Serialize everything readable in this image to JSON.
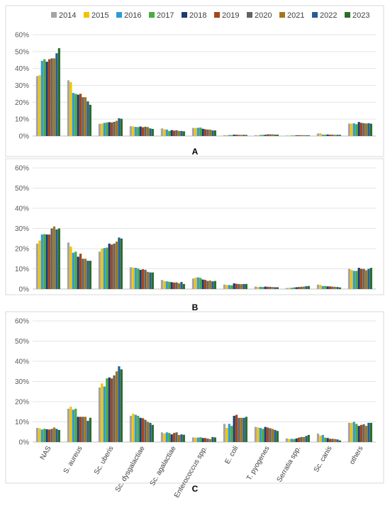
{
  "colors": [
    "#a5a5a5",
    "#f2c200",
    "#2e9bd6",
    "#4aab3f",
    "#1f3a6e",
    "#a6461c",
    "#636363",
    "#a0781a",
    "#255e91",
    "#2a6e2c"
  ],
  "chart_data": [
    {
      "type": "bar",
      "panel_label": "A",
      "categories": [
        "NAS",
        "S. aureus",
        "Sc. uberis",
        "Sc. dysgalactiae",
        "Sc. agalactiae",
        "Enterococcus spp.",
        "E. coli",
        "T. pyogenes",
        "Serratia spp.",
        "Sc. canis",
        "others"
      ],
      "show_category_labels": false,
      "ylim": [
        0,
        60
      ],
      "yticks": [
        "0%",
        "10%",
        "20%",
        "30%",
        "40%",
        "50%",
        "60%"
      ],
      "grid": true,
      "legend_position": "top",
      "series": [
        {
          "name": "2014",
          "values": [
            35.5,
            33.0,
            7.2,
            5.8,
            4.5,
            4.8,
            0.5,
            0.5,
            0.3,
            1.5,
            7.4
          ]
        },
        {
          "name": "2015",
          "values": [
            36.0,
            32.0,
            7.4,
            5.7,
            4.0,
            4.7,
            0.5,
            0.5,
            0.3,
            1.6,
            7.3
          ]
        },
        {
          "name": "2016",
          "values": [
            44.5,
            25.5,
            7.8,
            5.4,
            3.8,
            4.9,
            0.6,
            0.6,
            0.3,
            0.8,
            7.5
          ]
        },
        {
          "name": "2017",
          "values": [
            45.5,
            25.0,
            8.0,
            5.3,
            3.0,
            5.0,
            0.6,
            0.7,
            0.3,
            0.8,
            7.0
          ]
        },
        {
          "name": "2018",
          "values": [
            44.0,
            24.5,
            8.2,
            5.6,
            3.5,
            4.3,
            0.8,
            0.7,
            0.4,
            0.9,
            8.3
          ]
        },
        {
          "name": "2019",
          "values": [
            45.5,
            25.0,
            8.0,
            5.2,
            3.2,
            4.0,
            0.8,
            1.0,
            0.5,
            0.8,
            7.8
          ]
        },
        {
          "name": "2020",
          "values": [
            46.0,
            23.0,
            8.4,
            5.5,
            3.4,
            3.8,
            0.7,
            1.0,
            0.5,
            0.8,
            7.6
          ]
        },
        {
          "name": "2021",
          "values": [
            46.0,
            23.0,
            9.0,
            5.3,
            3.0,
            3.8,
            0.7,
            1.0,
            0.5,
            0.7,
            7.4
          ]
        },
        {
          "name": "2022",
          "values": [
            49.0,
            20.5,
            10.5,
            4.5,
            3.0,
            3.3,
            0.7,
            0.8,
            0.4,
            0.7,
            7.6
          ]
        },
        {
          "name": "2023",
          "values": [
            52.0,
            18.5,
            10.2,
            4.2,
            2.8,
            3.3,
            0.6,
            0.8,
            0.4,
            0.7,
            7.3
          ]
        }
      ]
    },
    {
      "type": "bar",
      "panel_label": "B",
      "categories": [
        "NAS",
        "S. aureus",
        "Sc. uberis",
        "Sc. dysgalactiae",
        "Sc. agalactiae",
        "Enterococcus spp.",
        "E. coli",
        "T. pyogenes",
        "Serratia spp.",
        "Sc. canis",
        "others"
      ],
      "show_category_labels": false,
      "ylim": [
        0,
        60
      ],
      "yticks": [
        "0%",
        "10%",
        "20%",
        "30%",
        "40%",
        "50%",
        "60%"
      ],
      "grid": true,
      "legend_position": "none",
      "series": [
        {
          "name": "2014",
          "values": [
            22.5,
            23.0,
            18.5,
            10.8,
            4.5,
            5.2,
            2.2,
            1.2,
            0.5,
            2.2,
            10.0
          ]
        },
        {
          "name": "2015",
          "values": [
            24.0,
            21.0,
            20.0,
            10.6,
            4.0,
            5.6,
            2.0,
            1.0,
            0.6,
            2.0,
            9.5
          ]
        },
        {
          "name": "2016",
          "values": [
            27.0,
            18.0,
            20.3,
            10.5,
            3.8,
            5.8,
            2.0,
            1.1,
            0.6,
            1.5,
            9.0
          ]
        },
        {
          "name": "2017",
          "values": [
            27.2,
            18.5,
            20.5,
            10.2,
            3.6,
            5.5,
            1.8,
            1.0,
            0.8,
            1.5,
            9.0
          ]
        },
        {
          "name": "2018",
          "values": [
            27.0,
            16.0,
            22.5,
            9.5,
            3.4,
            4.7,
            2.8,
            1.2,
            0.9,
            1.3,
            10.5
          ]
        },
        {
          "name": "2019",
          "values": [
            27.0,
            17.5,
            22.0,
            9.8,
            3.2,
            4.5,
            2.6,
            1.1,
            1.0,
            1.3,
            10.0
          ]
        },
        {
          "name": "2020",
          "values": [
            30.0,
            15.0,
            22.5,
            9.5,
            3.3,
            4.0,
            2.5,
            1.1,
            1.1,
            1.2,
            10.0
          ]
        },
        {
          "name": "2021",
          "values": [
            31.0,
            15.0,
            23.5,
            8.5,
            2.8,
            4.2,
            2.4,
            1.0,
            1.2,
            1.1,
            9.3
          ]
        },
        {
          "name": "2022",
          "values": [
            29.5,
            14.0,
            25.5,
            8.2,
            3.5,
            3.8,
            2.5,
            0.9,
            1.4,
            1.0,
            10.0
          ]
        },
        {
          "name": "2023",
          "values": [
            30.0,
            14.0,
            25.0,
            8.2,
            2.5,
            4.0,
            2.5,
            0.9,
            1.5,
            0.8,
            10.5
          ]
        }
      ]
    },
    {
      "type": "bar",
      "panel_label": "C",
      "categories": [
        "NAS",
        "S. aureus",
        "Sc. uberis",
        "Sc. dysgalactiae",
        "Sc. agalactiae",
        "Enterococcus spp.",
        "E. coli",
        "T. pyogenes",
        "Serratia spp.",
        "Sc. canis",
        "others"
      ],
      "show_category_labels": true,
      "ylim": [
        0,
        60
      ],
      "yticks": [
        "0%",
        "10%",
        "20%",
        "30%",
        "40%",
        "50%",
        "60%"
      ],
      "grid": true,
      "legend_position": "none",
      "series": [
        {
          "name": "2014",
          "values": [
            7.0,
            16.5,
            27.0,
            13.0,
            4.8,
            2.3,
            9.0,
            7.5,
            1.8,
            4.2,
            9.5
          ]
        },
        {
          "name": "2015",
          "values": [
            6.8,
            17.5,
            29.0,
            14.0,
            4.2,
            2.2,
            7.0,
            7.2,
            1.5,
            3.2,
            9.5
          ]
        },
        {
          "name": "2016",
          "values": [
            6.2,
            16.0,
            27.5,
            13.5,
            4.8,
            2.2,
            9.0,
            7.0,
            1.6,
            3.5,
            10.0
          ]
        },
        {
          "name": "2017",
          "values": [
            6.6,
            16.5,
            31.5,
            13.0,
            4.5,
            2.4,
            8.0,
            6.5,
            1.5,
            2.2,
            9.0
          ]
        },
        {
          "name": "2018",
          "values": [
            6.3,
            12.5,
            32.0,
            12.0,
            3.8,
            2.0,
            13.0,
            7.5,
            1.8,
            2.0,
            8.0
          ]
        },
        {
          "name": "2019",
          "values": [
            6.2,
            12.5,
            31.5,
            11.8,
            4.5,
            2.0,
            13.5,
            7.2,
            2.2,
            1.6,
            8.5
          ]
        },
        {
          "name": "2020",
          "values": [
            6.5,
            12.5,
            33.0,
            11.0,
            4.8,
            1.7,
            12.0,
            6.8,
            2.5,
            1.6,
            8.8
          ]
        },
        {
          "name": "2021",
          "values": [
            7.2,
            12.5,
            35.0,
            10.0,
            3.5,
            1.5,
            12.0,
            6.5,
            2.5,
            1.5,
            8.0
          ]
        },
        {
          "name": "2022",
          "values": [
            6.5,
            10.5,
            37.5,
            9.5,
            3.8,
            2.5,
            12.0,
            6.0,
            3.0,
            1.3,
            9.5
          ]
        },
        {
          "name": "2023",
          "values": [
            6.0,
            12.0,
            36.0,
            8.5,
            3.6,
            2.3,
            12.5,
            5.5,
            3.5,
            0.8,
            9.5
          ]
        }
      ]
    }
  ]
}
